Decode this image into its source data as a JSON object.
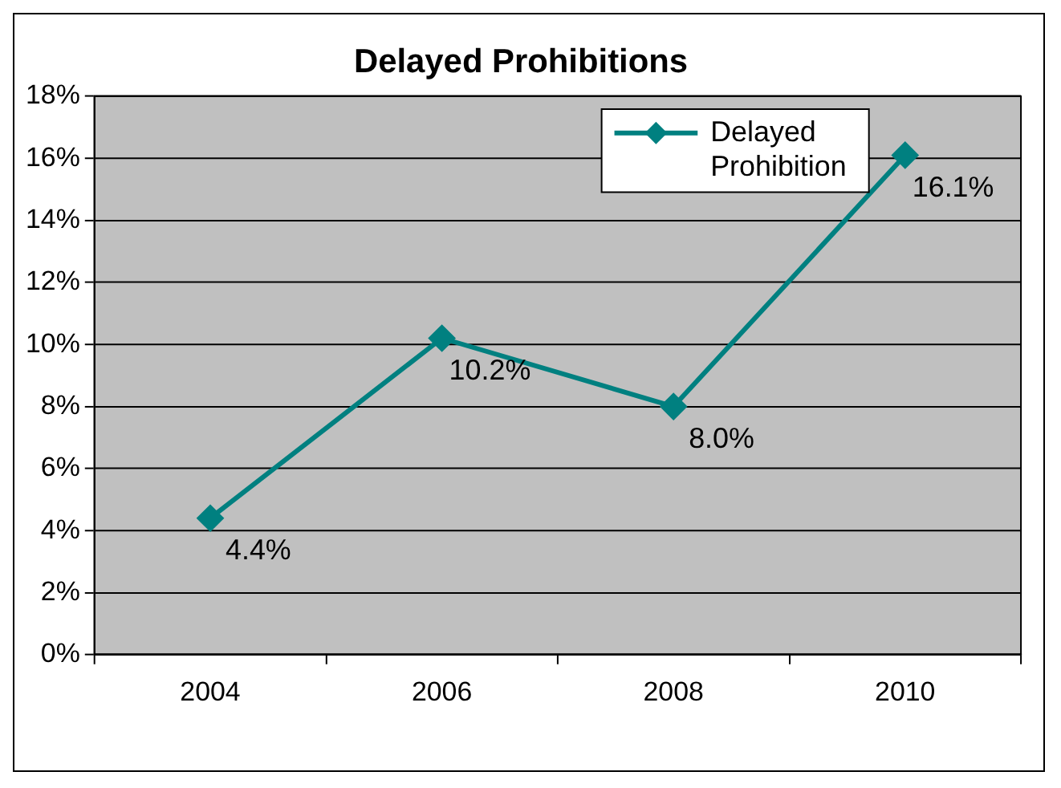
{
  "chart_data": {
    "type": "line",
    "title": "Delayed Prohibitions",
    "categories": [
      "2004",
      "2006",
      "2008",
      "2010"
    ],
    "series": [
      {
        "name": "Delayed Prohibition",
        "color": "#008080",
        "values": [
          4.4,
          10.2,
          8.0,
          16.1
        ],
        "value_labels": [
          "4.4%",
          "10.2%",
          "8.0%",
          "16.1%"
        ]
      }
    ],
    "ylim": [
      0,
      18
    ],
    "yticks": [
      {
        "value": 0,
        "label": "0%"
      },
      {
        "value": 2,
        "label": "2%"
      },
      {
        "value": 4,
        "label": "4%"
      },
      {
        "value": 6,
        "label": "6%"
      },
      {
        "value": 8,
        "label": "8%"
      },
      {
        "value": 10,
        "label": "10%"
      },
      {
        "value": 12,
        "label": "12%"
      },
      {
        "value": 14,
        "label": "14%"
      },
      {
        "value": 16,
        "label": "16%"
      },
      {
        "value": 18,
        "label": "18%"
      }
    ],
    "grid": "y",
    "legend": "top right",
    "marker": "diamond",
    "line_style": "solid"
  }
}
